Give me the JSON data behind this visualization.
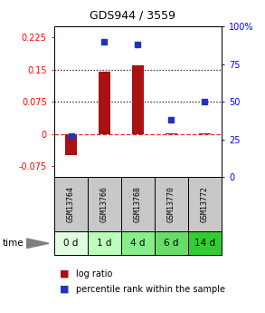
{
  "title": "GDS944 / 3559",
  "samples": [
    "GSM13764",
    "GSM13766",
    "GSM13768",
    "GSM13770",
    "GSM13772"
  ],
  "time_labels": [
    "0 d",
    "1 d",
    "4 d",
    "6 d",
    "14 d"
  ],
  "log_ratios": [
    -0.05,
    0.145,
    0.16,
    0.002,
    0.002
  ],
  "percentile_ranks": [
    27,
    90,
    88,
    38,
    50
  ],
  "ylim_left": [
    -0.1,
    0.25
  ],
  "ylim_right": [
    0,
    100
  ],
  "yticks_left": [
    -0.075,
    0,
    0.075,
    0.15,
    0.225
  ],
  "yticks_right": [
    0,
    25,
    50,
    75,
    100
  ],
  "ytick_labels_left": [
    "-0.075",
    "0",
    "0.075",
    "0.15",
    "0.225"
  ],
  "ytick_labels_right": [
    "0",
    "25",
    "50",
    "75",
    "100%"
  ],
  "hlines": [
    0.075,
    0.15
  ],
  "bar_color": "#aa1111",
  "dot_color": "#2233bb",
  "zero_line_color": "#cc3333",
  "hline_color": "#111111",
  "sample_bg_color": "#c8c8c8",
  "time_bg_colors": [
    "#dfffdf",
    "#bbffbb",
    "#88ee88",
    "#66dd66",
    "#33cc33"
  ],
  "bar_width": 0.35,
  "x_positions": [
    1,
    2,
    3,
    4,
    5
  ],
  "legend_log_ratio": "log ratio",
  "legend_percentile": "percentile rank within the sample",
  "title_fontsize": 9,
  "tick_fontsize": 7,
  "sample_fontsize": 6,
  "time_fontsize": 7.5,
  "legend_fontsize": 7
}
